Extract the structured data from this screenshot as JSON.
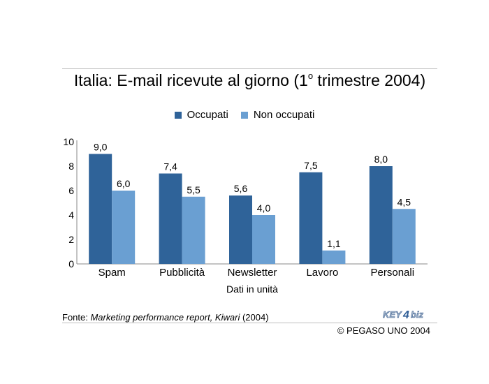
{
  "title_main": "Italia: E-mail ricevute al giorno (1",
  "title_sup": "o",
  "title_end": " trimestre 2004)",
  "legend": [
    {
      "label": "Occupati",
      "color": "#2f6399"
    },
    {
      "label": "Non occupati",
      "color": "#6a9fd2"
    }
  ],
  "chart_data": {
    "type": "bar",
    "categories": [
      "Spam",
      "Pubblicità",
      "Newsletter",
      "Lavoro",
      "Personali"
    ],
    "series": [
      {
        "name": "Occupati",
        "values": [
          9.0,
          7.4,
          5.6,
          7.5,
          8.0
        ],
        "labels": [
          "9,0",
          "7,4",
          "5,6",
          "7,5",
          "8,0"
        ],
        "color": "#2f6399"
      },
      {
        "name": "Non occupati",
        "values": [
          6.0,
          5.5,
          4.0,
          1.1,
          4.5
        ],
        "labels": [
          "6,0",
          "5,5",
          "4,0",
          "1,1",
          "4,5"
        ],
        "color": "#6a9fd2"
      }
    ],
    "yticks": [
      "0",
      "2",
      "4",
      "6",
      "8",
      "10"
    ],
    "ylim": [
      0,
      10
    ],
    "xlabel": "Dati in unità",
    "ylabel": "",
    "grid": false,
    "legend_position": "top-center"
  },
  "source": {
    "prefix": "Fonte: ",
    "italic": "Marketing performance report, Kiwari",
    "suffix": " (2004)"
  },
  "logo": {
    "text_key": "KEY",
    "text_num": "4",
    "text_biz": "biz"
  },
  "copyright": "© PEGASO UNO 2004"
}
